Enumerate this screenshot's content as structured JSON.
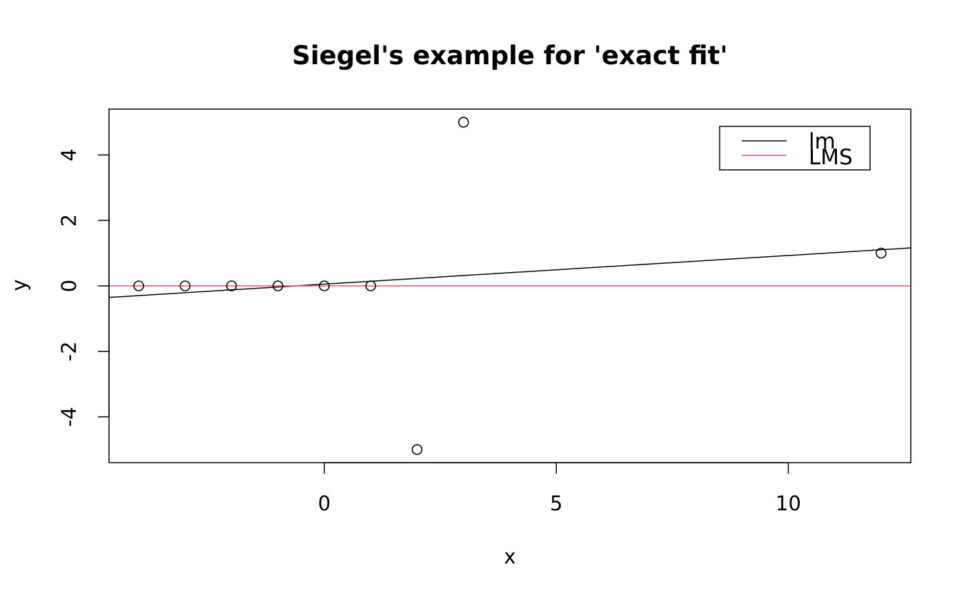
{
  "chart_data": {
    "type": "scatter",
    "title": "Siegel's example for 'exact fit'",
    "xlabel": "x",
    "ylabel": "y",
    "xlim": [
      -4.64,
      12.64
    ],
    "ylim": [
      -5.4,
      5.4
    ],
    "x_ticks": [
      0,
      5,
      10
    ],
    "y_ticks": [
      -4,
      -2,
      0,
      2,
      4
    ],
    "points": [
      {
        "x": -4,
        "y": 0
      },
      {
        "x": -3,
        "y": 0
      },
      {
        "x": -2,
        "y": 0
      },
      {
        "x": -1,
        "y": 0
      },
      {
        "x": 0,
        "y": 0
      },
      {
        "x": 1,
        "y": 0
      },
      {
        "x": 2,
        "y": -5
      },
      {
        "x": 3,
        "y": 5
      },
      {
        "x": 12,
        "y": 1
      }
    ],
    "lines": [
      {
        "name": "lm",
        "intercept": 0.0536,
        "slope": 0.0875,
        "color": "#000000"
      },
      {
        "name": "LMS",
        "intercept": 0,
        "slope": 0,
        "color": "#DF536B"
      }
    ],
    "legend": {
      "position": "top-right",
      "entries": [
        {
          "label": "lm",
          "color": "#000000"
        },
        {
          "label": "LMS",
          "color": "#DF536B"
        }
      ]
    },
    "grid": false
  }
}
